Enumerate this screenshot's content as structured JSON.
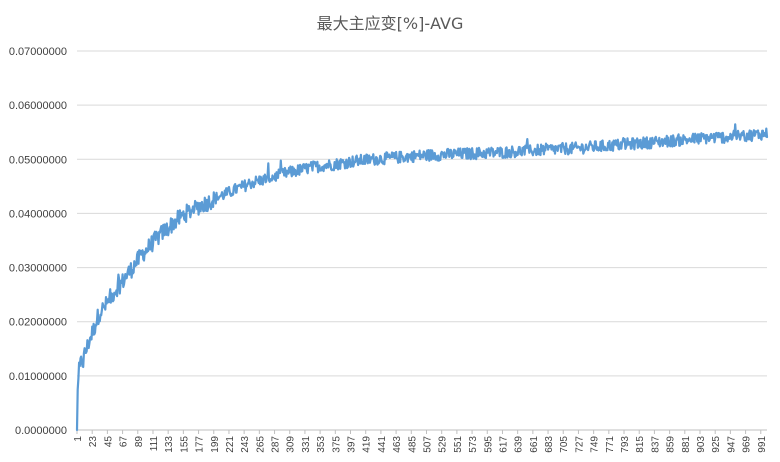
{
  "chart_data": {
    "type": "line",
    "title": "最大主应变[%]-AVG",
    "xlabel": "",
    "ylabel": "",
    "ylim": [
      0,
      0.07
    ],
    "y_ticks": [
      "0.0000000",
      "0.01000000",
      "0.02000000",
      "0.03000000",
      "0.04000000",
      "0.05000000",
      "0.06000000",
      "0.07000000"
    ],
    "x_ticks": [
      1,
      23,
      45,
      67,
      89,
      111,
      133,
      155,
      177,
      199,
      221,
      243,
      265,
      287,
      309,
      331,
      353,
      375,
      397,
      419,
      441,
      463,
      485,
      507,
      529,
      551,
      573,
      595,
      617,
      639,
      661,
      683,
      705,
      727,
      749,
      771,
      793,
      815,
      837,
      859,
      881,
      903,
      925,
      947,
      969,
      991
    ],
    "x_range": [
      1,
      1000
    ],
    "grid": true,
    "legend": "none",
    "colors": {
      "series": "#5b9bd5"
    },
    "series": [
      {
        "x": [
          1,
          2,
          4,
          6,
          8,
          10,
          12,
          15,
          20,
          25,
          30,
          35,
          40,
          45,
          50,
          55,
          60,
          65,
          70,
          75,
          80,
          85,
          90,
          95,
          100,
          105,
          110,
          115,
          120,
          125,
          130,
          135,
          140,
          145,
          150,
          155,
          160,
          170,
          180,
          190,
          200,
          210,
          220,
          230,
          240,
          250,
          260,
          270,
          280,
          290,
          300,
          310,
          320,
          330,
          340,
          350,
          360,
          370,
          380,
          390,
          400,
          420,
          440,
          460,
          480,
          500,
          520,
          540,
          560,
          580,
          600,
          620,
          640,
          660,
          680,
          700,
          720,
          740,
          760,
          780,
          800,
          820,
          840,
          860,
          880,
          900,
          920,
          940,
          960,
          980,
          1000
        ],
        "y": [
          0.0,
          0.0075,
          0.0105,
          0.012,
          0.013,
          0.0125,
          0.014,
          0.015,
          0.017,
          0.0185,
          0.0205,
          0.022,
          0.0225,
          0.0235,
          0.0245,
          0.0255,
          0.0265,
          0.027,
          0.028,
          0.029,
          0.0297,
          0.0307,
          0.0315,
          0.0325,
          0.033,
          0.0338,
          0.0345,
          0.0352,
          0.0358,
          0.0365,
          0.037,
          0.0375,
          0.0382,
          0.0387,
          0.0392,
          0.0397,
          0.0401,
          0.0408,
          0.0415,
          0.042,
          0.0427,
          0.0433,
          0.0438,
          0.0444,
          0.0449,
          0.0455,
          0.0459,
          0.0462,
          0.0466,
          0.0469,
          0.0473,
          0.0476,
          0.0479,
          0.0482,
          0.0485,
          0.0487,
          0.0489,
          0.049,
          0.0492,
          0.0494,
          0.0496,
          0.0499,
          0.0501,
          0.0503,
          0.0505,
          0.0507,
          0.0508,
          0.0509,
          0.051,
          0.0511,
          0.0512,
          0.0513,
          0.0515,
          0.0516,
          0.0518,
          0.0519,
          0.052,
          0.0522,
          0.0524,
          0.0526,
          0.0528,
          0.053,
          0.0532,
          0.0534,
          0.0536,
          0.0538,
          0.054,
          0.0541,
          0.0543,
          0.0545,
          0.0548
        ]
      }
    ]
  }
}
